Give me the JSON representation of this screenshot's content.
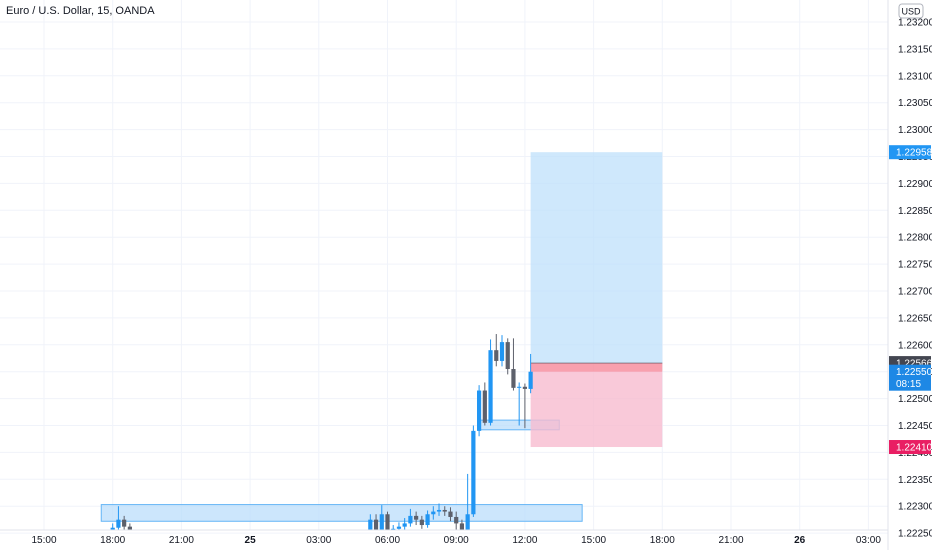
{
  "header": {
    "title": "Euro / U.S. Dollar, 15, OANDA",
    "currency_button": "USD"
  },
  "colors": {
    "up": "#2196f3",
    "down": "#5d606b",
    "stop": "#f7525f",
    "target_zone": "#bbdefb",
    "stop_zone": "#f8bbd0",
    "support_zone": "#bbdefb",
    "current_price_badge": "#1e88e5",
    "last_price_badge": "#434651",
    "target_badge": "#2196f3",
    "stop_badge": "#e91e63",
    "grid": "#f0f3fa"
  },
  "chart_data": {
    "type": "candlestick",
    "symbol": "Euro / U.S. Dollar",
    "interval": "15",
    "source": "OANDA",
    "y_axis": {
      "ylim": [
        1.22235,
        1.23225
      ],
      "ticks": [
        "1.23200",
        "1.23150",
        "1.23100",
        "1.23050",
        "1.23000",
        "1.22950",
        "1.22900",
        "1.22850",
        "1.22800",
        "1.22750",
        "1.22700",
        "1.22650",
        "1.22600",
        "1.22550",
        "1.22500",
        "1.22450",
        "1.22400",
        "1.22350",
        "1.22300",
        "1.22250"
      ]
    },
    "x_axis": {
      "xlim_hours": [
        13.5,
        51.0
      ],
      "ticks": [
        {
          "label": "15:00",
          "h": 15,
          "bold": false
        },
        {
          "label": "18:00",
          "h": 18,
          "bold": false
        },
        {
          "label": "21:00",
          "h": 21,
          "bold": false
        },
        {
          "label": "25",
          "h": 24,
          "bold": true
        },
        {
          "label": "03:00",
          "h": 27,
          "bold": false
        },
        {
          "label": "06:00",
          "h": 30,
          "bold": false
        },
        {
          "label": "09:00",
          "h": 33,
          "bold": false
        },
        {
          "label": "12:00",
          "h": 36,
          "bold": false
        },
        {
          "label": "15:00",
          "h": 39,
          "bold": false
        },
        {
          "label": "18:00",
          "h": 42,
          "bold": false
        },
        {
          "label": "21:00",
          "h": 45,
          "bold": false
        },
        {
          "label": "26",
          "h": 48,
          "bold": true
        },
        {
          "label": "03:00",
          "h": 51,
          "bold": false
        }
      ]
    },
    "candles": [
      {
        "h": 18.0,
        "o": 1.22248,
        "c": 1.2226,
        "hi": 1.22268,
        "lo": 1.2224
      },
      {
        "h": 18.25,
        "o": 1.2226,
        "c": 1.22275,
        "hi": 1.223,
        "lo": 1.2225
      },
      {
        "h": 18.5,
        "o": 1.22275,
        "c": 1.22262,
        "hi": 1.22282,
        "lo": 1.22255
      },
      {
        "h": 18.75,
        "o": 1.22262,
        "c": 1.2225,
        "hi": 1.22268,
        "lo": 1.2224
      },
      {
        "h": 29.25,
        "o": 1.22248,
        "c": 1.22275,
        "hi": 1.22285,
        "lo": 1.2224
      },
      {
        "h": 29.5,
        "o": 1.22275,
        "c": 1.22255,
        "hi": 1.22285,
        "lo": 1.22248
      },
      {
        "h": 29.75,
        "o": 1.22255,
        "c": 1.22285,
        "hi": 1.22302,
        "lo": 1.2225
      },
      {
        "h": 30.0,
        "o": 1.22285,
        "c": 1.22252,
        "hi": 1.2229,
        "lo": 1.22245
      },
      {
        "h": 30.25,
        "o": 1.22252,
        "c": 1.22258,
        "hi": 1.22265,
        "lo": 1.22245
      },
      {
        "h": 30.5,
        "o": 1.22258,
        "c": 1.22262,
        "hi": 1.2227,
        "lo": 1.2225
      },
      {
        "h": 30.75,
        "o": 1.22262,
        "c": 1.22268,
        "hi": 1.22278,
        "lo": 1.22255
      },
      {
        "h": 31.0,
        "o": 1.22268,
        "c": 1.22282,
        "hi": 1.22295,
        "lo": 1.22262
      },
      {
        "h": 31.25,
        "o": 1.22282,
        "c": 1.22275,
        "hi": 1.2229,
        "lo": 1.22265
      },
      {
        "h": 31.5,
        "o": 1.22275,
        "c": 1.22265,
        "hi": 1.22282,
        "lo": 1.22258
      },
      {
        "h": 31.75,
        "o": 1.22265,
        "c": 1.22285,
        "hi": 1.22292,
        "lo": 1.2226
      },
      {
        "h": 32.0,
        "o": 1.22285,
        "c": 1.2229,
        "hi": 1.223,
        "lo": 1.22275
      },
      {
        "h": 32.25,
        "o": 1.2229,
        "c": 1.22293,
        "hi": 1.22305,
        "lo": 1.22282
      },
      {
        "h": 32.5,
        "o": 1.22293,
        "c": 1.2229,
        "hi": 1.223,
        "lo": 1.22282
      },
      {
        "h": 32.75,
        "o": 1.2229,
        "c": 1.2228,
        "hi": 1.22298,
        "lo": 1.22272
      },
      {
        "h": 33.0,
        "o": 1.2228,
        "c": 1.22268,
        "hi": 1.2229,
        "lo": 1.22255
      },
      {
        "h": 33.25,
        "o": 1.22268,
        "c": 1.2224,
        "hi": 1.22275,
        "lo": 1.22235
      },
      {
        "h": 33.5,
        "o": 1.2224,
        "c": 1.22285,
        "hi": 1.2236,
        "lo": 1.22235
      },
      {
        "h": 33.75,
        "o": 1.22285,
        "c": 1.2244,
        "hi": 1.2245,
        "lo": 1.2228
      },
      {
        "h": 34.0,
        "o": 1.2244,
        "c": 1.22515,
        "hi": 1.22525,
        "lo": 1.2243
      },
      {
        "h": 34.25,
        "o": 1.22515,
        "c": 1.22455,
        "hi": 1.2253,
        "lo": 1.2245
      },
      {
        "h": 34.5,
        "o": 1.22455,
        "c": 1.2259,
        "hi": 1.2261,
        "lo": 1.2245
      },
      {
        "h": 34.75,
        "o": 1.2259,
        "c": 1.2257,
        "hi": 1.2262,
        "lo": 1.2256
      },
      {
        "h": 35.0,
        "o": 1.2257,
        "c": 1.22605,
        "hi": 1.22618,
        "lo": 1.2256
      },
      {
        "h": 35.25,
        "o": 1.22605,
        "c": 1.22555,
        "hi": 1.22612,
        "lo": 1.22545
      },
      {
        "h": 35.5,
        "o": 1.22555,
        "c": 1.2252,
        "hi": 1.22612,
        "lo": 1.22515
      },
      {
        "h": 35.75,
        "o": 1.2252,
        "c": 1.22522,
        "hi": 1.2253,
        "lo": 1.2245
      },
      {
        "h": 36.0,
        "o": 1.22522,
        "c": 1.22518,
        "hi": 1.22528,
        "lo": 1.22445
      },
      {
        "h": 36.25,
        "o": 1.22518,
        "c": 1.2255,
        "hi": 1.22583,
        "lo": 1.2251
      }
    ],
    "position": {
      "type": "long",
      "start_h": 36.25,
      "end_h": 42.0,
      "entry": 1.22566,
      "target": 1.22958,
      "stop": 1.2241
    },
    "zones": [
      {
        "name": "support",
        "start_h": 17.5,
        "end_h": 38.5,
        "top": 1.22303,
        "bottom": 1.22272
      },
      {
        "name": "retest",
        "start_h": 34.0,
        "end_h": 37.5,
        "top": 1.2246,
        "bottom": 1.22442
      }
    ],
    "price_labels": [
      {
        "name": "target",
        "value": "1.22958",
        "price": 1.22958
      },
      {
        "name": "last",
        "value": "1.22566",
        "price": 1.22566
      },
      {
        "name": "current",
        "value": "1.22550",
        "price": 1.2255,
        "countdown": "08:15"
      },
      {
        "name": "stop",
        "value": "1.22410",
        "price": 1.2241
      }
    ]
  }
}
